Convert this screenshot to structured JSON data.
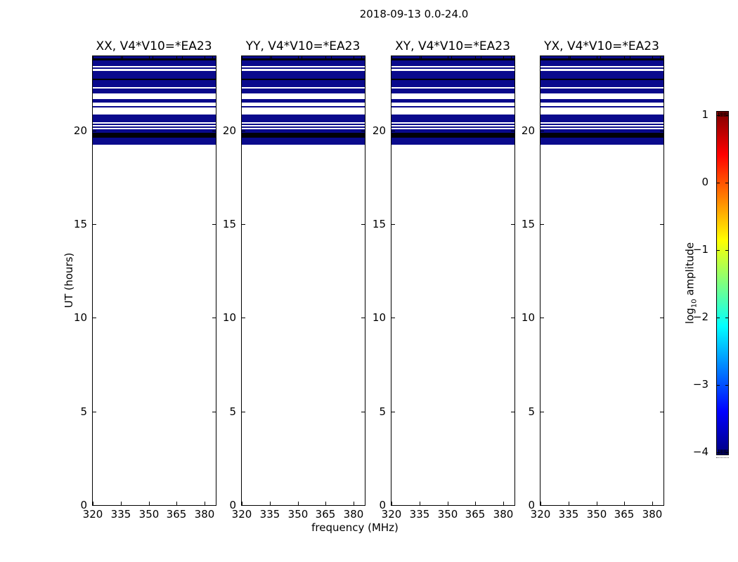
{
  "figure": {
    "suptitle": "2018-09-13 0.0-24.0",
    "xlabel": "frequency (MHz)",
    "ylabel": "UT (hours)",
    "colorbar_label": {
      "pre": "log",
      "sub": "10",
      "post": " amplitude"
    }
  },
  "chart_data": {
    "type": "heatmap",
    "title": "2018-09-13 0.0-24.0",
    "xlabel": "frequency (MHz)",
    "ylabel": "UT (hours)",
    "panels": [
      {
        "title": "XX, V4*V10=*EA23"
      },
      {
        "title": "YY, V4*V10=*EA23"
      },
      {
        "title": "XY, V4*V10=*EA23"
      },
      {
        "title": "YX, V4*V10=*EA23"
      }
    ],
    "xlim": [
      320,
      386.4
    ],
    "ylim": [
      0,
      24
    ],
    "xticks": [
      320,
      335,
      350,
      365,
      380
    ],
    "yticks": [
      0,
      5,
      10,
      15,
      20
    ],
    "xtick_labels": [
      "320",
      "335",
      "350",
      "365",
      "380"
    ],
    "ytick_labels": [
      "0",
      "5",
      "10",
      "15",
      "20"
    ],
    "subband_edges_mhz": [
      336,
      352,
      368,
      384
    ],
    "subband_line_ut_range": [
      23.78,
      24.0
    ],
    "levels": {
      "low": "#0a0a8c",
      "verylow": "#010108"
    },
    "no_data_color": "#ffffff",
    "bands": [
      {
        "ut": [
          23.89,
          24.0
        ],
        "level": "low"
      },
      {
        "ut": [
          23.78,
          23.89
        ],
        "level": "verylow"
      },
      {
        "ut": [
          23.48,
          23.78
        ],
        "level": "low"
      },
      {
        "ut": [
          23.33,
          23.4
        ],
        "level": "low"
      },
      {
        "ut": [
          22.8,
          23.21
        ],
        "level": "low"
      },
      {
        "ut": [
          22.73,
          22.8
        ],
        "level": "verylow"
      },
      {
        "ut": [
          22.35,
          22.73
        ],
        "level": "low"
      },
      {
        "ut": [
          22.01,
          22.28
        ],
        "level": "low"
      },
      {
        "ut": [
          21.53,
          21.71
        ],
        "level": "low"
      },
      {
        "ut": [
          21.26,
          21.34
        ],
        "level": "low"
      },
      {
        "ut": [
          20.48,
          20.89
        ],
        "level": "low"
      },
      {
        "ut": [
          20.33,
          20.4
        ],
        "level": "low"
      },
      {
        "ut": [
          20.18,
          20.25
        ],
        "level": "low"
      },
      {
        "ut": [
          19.91,
          20.1
        ],
        "level": "low"
      },
      {
        "ut": [
          19.65,
          19.91
        ],
        "level": "verylow"
      },
      {
        "ut": [
          19.28,
          19.65
        ],
        "level": "low"
      }
    ],
    "colorbar": {
      "label": "log10 amplitude",
      "range": [
        -4,
        1
      ],
      "ticks": [
        1,
        0,
        -1,
        -2,
        -3,
        -4
      ],
      "tick_labels": [
        "1",
        "0",
        "−1",
        "−2",
        "−3",
        "−4"
      ],
      "cmap": "jet",
      "gradient_stops_top_to_bottom": [
        {
          "pos": 0.0,
          "color": "#7f0000"
        },
        {
          "pos": 0.125,
          "color": "#ff0000"
        },
        {
          "pos": 0.375,
          "color": "#ffff00"
        },
        {
          "pos": 0.625,
          "color": "#00ffff"
        },
        {
          "pos": 0.875,
          "color": "#0000ff"
        },
        {
          "pos": 1.0,
          "color": "#00007f"
        }
      ]
    }
  }
}
